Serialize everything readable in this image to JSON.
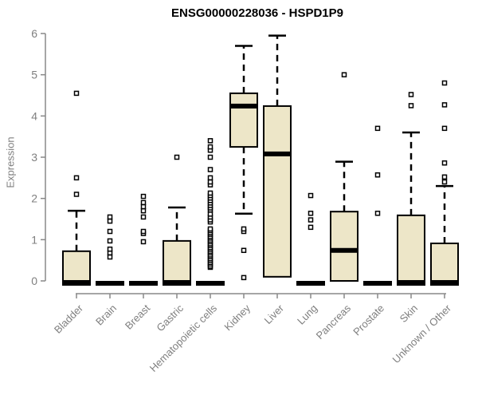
{
  "title": "ENSG00000228036 - HSPD1P9",
  "chart_data": {
    "type": "boxplot",
    "title": "ENSG00000228036 - HSPD1P9",
    "xlabel": "",
    "ylabel": "Expression",
    "ylim": [
      0,
      6
    ],
    "yticks": [
      0,
      1,
      2,
      3,
      4,
      5,
      6
    ],
    "grid": false,
    "legend": false,
    "categories": [
      "Bladder",
      "Brain",
      "Breast",
      "Gastric",
      "Hematopoietic cells",
      "Kidney",
      "Liver",
      "Lung",
      "Pancreas",
      "Prostate",
      "Skin",
      "Unknown / Other"
    ],
    "boxes": [
      {
        "category": "Bladder",
        "q1": 0,
        "median": 0,
        "q3": 0.72,
        "whisker_low": 0,
        "whisker_high": 1.7,
        "outliers": [
          2.1,
          2.5,
          4.55
        ]
      },
      {
        "category": "Brain",
        "q1": 0,
        "median": 0,
        "q3": 0,
        "whisker_low": 0,
        "whisker_high": 0,
        "outliers": [
          0.58,
          0.68,
          0.77,
          0.97,
          1.2,
          1.45,
          1.55
        ]
      },
      {
        "category": "Breast",
        "q1": 0,
        "median": 0,
        "q3": 0,
        "whisker_low": 0,
        "whisker_high": 0,
        "outliers": [
          0.95,
          1.15,
          1.2,
          1.55,
          1.7,
          1.8,
          1.9,
          2.05
        ]
      },
      {
        "category": "Gastric",
        "q1": 0,
        "median": 0,
        "q3": 0.97,
        "whisker_low": 0,
        "whisker_high": 1.78,
        "outliers": [
          3.0
        ]
      },
      {
        "category": "Hematopoietic cells",
        "q1": 0,
        "median": 0,
        "q3": 0,
        "whisker_low": 0,
        "whisker_high": 0,
        "outliers": [
          0.33,
          0.36,
          0.41,
          0.45,
          0.5,
          0.54,
          0.59,
          0.63,
          0.68,
          0.72,
          0.77,
          0.81,
          0.86,
          0.9,
          0.95,
          0.99,
          1.04,
          1.08,
          1.13,
          1.17,
          1.22,
          1.26,
          1.43,
          1.48,
          1.55,
          1.62,
          1.72,
          1.77,
          1.83,
          1.89,
          1.95,
          2.01,
          2.07,
          2.13,
          2.33,
          2.4,
          2.5,
          2.7,
          3.0,
          3.17,
          3.25,
          3.4
        ]
      },
      {
        "category": "Kidney",
        "q1": 3.25,
        "median": 4.24,
        "q3": 4.55,
        "whisker_low": 1.63,
        "whisker_high": 5.7,
        "outliers": [
          0.08,
          0.74,
          1.2,
          1.26
        ]
      },
      {
        "category": "Liver",
        "q1": 0.1,
        "median": 3.08,
        "q3": 4.24,
        "whisker_low": 0.1,
        "whisker_high": 5.95,
        "outliers": []
      },
      {
        "category": "Lung",
        "q1": 0,
        "median": 0,
        "q3": 0,
        "whisker_low": 0,
        "whisker_high": 0,
        "outliers": [
          1.3,
          1.48,
          1.64,
          2.07
        ]
      },
      {
        "category": "Pancreas",
        "q1": 0,
        "median": 0.74,
        "q3": 1.68,
        "whisker_low": 0,
        "whisker_high": 2.89,
        "outliers": [
          5.0
        ]
      },
      {
        "category": "Prostate",
        "q1": 0,
        "median": 0,
        "q3": 0,
        "whisker_low": 0,
        "whisker_high": 0,
        "outliers": [
          1.64,
          2.57,
          3.7
        ]
      },
      {
        "category": "Skin",
        "q1": 0,
        "median": 0,
        "q3": 1.59,
        "whisker_low": 0,
        "whisker_high": 3.6,
        "outliers": [
          4.25,
          4.52
        ]
      },
      {
        "category": "Unknown / Other",
        "q1": 0,
        "median": 0,
        "q3": 0.91,
        "whisker_low": 0,
        "whisker_high": 2.3,
        "outliers": [
          2.4,
          2.52,
          2.86,
          3.7,
          4.27,
          4.8
        ]
      }
    ],
    "colors": {
      "box_fill": "#EDE6C8",
      "box_border": "#000000",
      "median": "#000000",
      "whisker": "#000000",
      "outlier": "#000000",
      "axis": "#888888",
      "tick_label": "#7f7f7f",
      "title": "#000000",
      "background": "#ffffff"
    }
  }
}
